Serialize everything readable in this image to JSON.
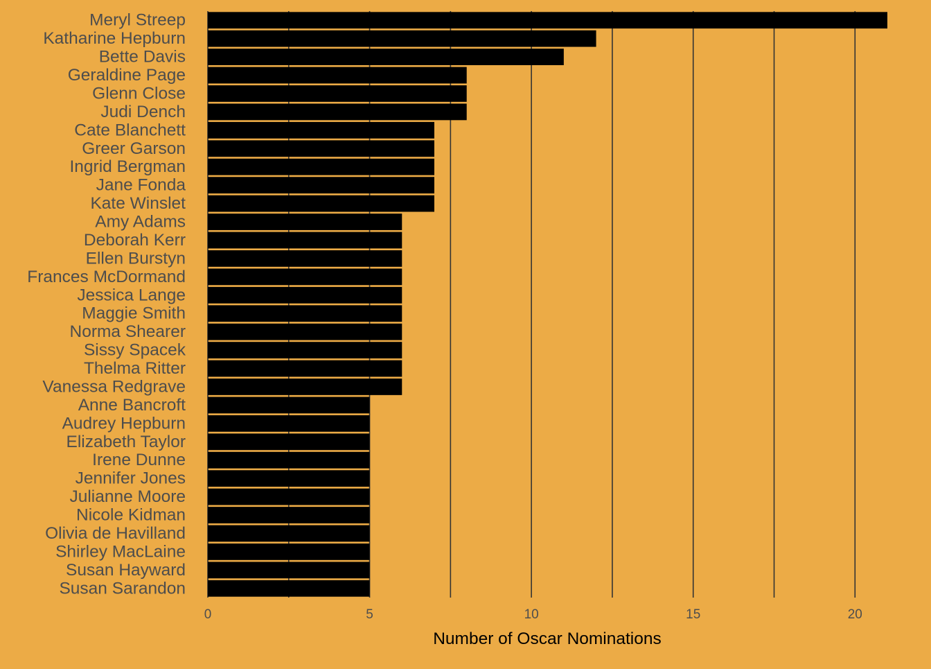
{
  "chart_data": {
    "type": "bar",
    "orientation": "horizontal",
    "categories": [
      "Meryl Streep",
      "Katharine Hepburn",
      "Bette Davis",
      "Geraldine Page",
      "Glenn Close",
      "Judi Dench",
      "Cate Blanchett",
      "Greer Garson",
      "Ingrid Bergman",
      "Jane Fonda",
      "Kate Winslet",
      "Amy Adams",
      "Deborah Kerr",
      "Ellen Burstyn",
      "Frances McDormand",
      "Jessica Lange",
      "Maggie Smith",
      "Norma Shearer",
      "Sissy Spacek",
      "Thelma Ritter",
      "Vanessa Redgrave",
      "Anne Bancroft",
      "Audrey Hepburn",
      "Elizabeth Taylor",
      "Irene Dunne",
      "Jennifer Jones",
      "Julianne Moore",
      "Nicole Kidman",
      "Olivia de Havilland",
      "Shirley MacLaine",
      "Susan Hayward",
      "Susan Sarandon"
    ],
    "values": [
      21,
      12,
      11,
      8,
      8,
      8,
      7,
      7,
      7,
      7,
      7,
      6,
      6,
      6,
      6,
      6,
      6,
      6,
      6,
      6,
      6,
      5,
      5,
      5,
      5,
      5,
      5,
      5,
      5,
      5,
      5,
      5
    ],
    "title": "",
    "xlabel": "Number of Oscar Nominations",
    "ylabel": "",
    "xlim": [
      0,
      21.9
    ],
    "x_ticks": [
      0,
      5,
      10,
      15,
      20
    ],
    "x_tick_labels": [
      "0",
      "5",
      "10",
      "15",
      "20"
    ],
    "grid": true,
    "legend": "none",
    "colors": {
      "background": "#ECAB46",
      "bar": "#000000",
      "grid": "#333333",
      "label": "#4D4D4D"
    }
  }
}
